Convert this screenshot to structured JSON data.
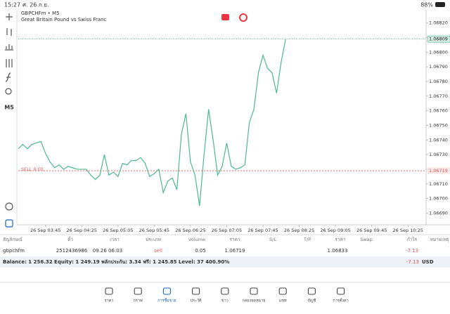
{
  "status_bar": {
    "time": "15:27",
    "date": "ศ. 26 ก.ย.",
    "battery": "88%"
  },
  "chart_data": {
    "type": "line",
    "title": "GBPCHFm • M5",
    "subtitle": "Great Britain Pound vs Swiss Franc",
    "color": "#4cb88d",
    "categories": [
      null,
      null,
      null,
      null,
      null,
      null,
      "26 Sep 03:45",
      null,
      null,
      null,
      null,
      null,
      null,
      null,
      "26 Sep 04:25",
      null,
      null,
      null,
      null,
      null,
      null,
      null,
      "26 Sep 05:05",
      null,
      null,
      null,
      null,
      null,
      null,
      null,
      "26 Sep 05:45",
      null,
      null,
      null,
      null,
      null,
      null,
      null,
      "26 Sep 06:25",
      null,
      null,
      null,
      null,
      null,
      null,
      null,
      "26 Sep 07:05",
      null,
      null,
      null,
      null,
      null,
      null,
      null,
      "26 Sep 07:45",
      null,
      null,
      null,
      null,
      null,
      null,
      null,
      "26 Sep 08:25",
      null,
      null,
      null,
      null,
      null,
      null,
      null,
      "26 Sep 09:05",
      null,
      null,
      null,
      null,
      null,
      null,
      null,
      "26 Sep 09:45",
      null,
      null,
      null,
      null,
      null,
      null,
      null,
      "26 Sep 10:25",
      null,
      null,
      null
    ],
    "values": [
      1.06734,
      1.06737,
      1.06734,
      1.06737,
      1.06738,
      1.06739,
      1.06731,
      1.06725,
      1.06721,
      1.06723,
      1.0672,
      1.06722,
      1.06721,
      1.0672,
      1.0672,
      1.0672,
      1.06716,
      1.06713,
      1.06716,
      1.0673,
      1.06716,
      1.06718,
      1.06715,
      1.06724,
      1.06723,
      1.06726,
      1.06726,
      1.06728,
      1.06724,
      1.06715,
      1.06717,
      1.0672,
      1.06704,
      1.06712,
      1.06714,
      1.06706,
      1.06744,
      1.06758,
      1.06725,
      1.06716,
      1.06695,
      1.0673,
      1.06761,
      1.0674,
      1.06716,
      1.06722,
      1.06738,
      1.06722,
      1.0672,
      1.06721,
      1.06723,
      1.06752,
      1.06761,
      1.06786,
      1.06798,
      1.06789,
      1.06786,
      1.06772,
      1.06793,
      1.06809,
      null,
      null,
      null,
      null,
      null,
      null,
      null,
      null,
      null,
      null,
      null,
      null,
      null,
      null,
      null,
      null,
      null,
      null,
      null,
      null,
      null,
      null,
      null,
      null,
      null,
      null,
      null,
      null,
      null,
      null
    ],
    "ylim": [
      1.06683,
      1.06829
    ],
    "yticks": [
      {
        "value": 1.0669,
        "label": "1.06690"
      },
      {
        "value": 1.067,
        "label": "1.06700"
      },
      {
        "value": 1.0671,
        "label": "1.06710"
      },
      {
        "value": 1.0672,
        "label": "1.06720"
      },
      {
        "value": 1.0673,
        "label": "1.06730"
      },
      {
        "value": 1.0674,
        "label": "1.06740"
      },
      {
        "value": 1.0675,
        "label": "1.06750"
      },
      {
        "value": 1.0676,
        "label": "1.06760"
      },
      {
        "value": 1.0677,
        "label": "1.06770"
      },
      {
        "value": 1.0678,
        "label": "1.06780"
      },
      {
        "value": 1.0679,
        "label": "1.06790"
      },
      {
        "value": 1.068,
        "label": "1.06800"
      },
      {
        "value": 1.0681,
        "label": "1.06810"
      },
      {
        "value": 1.0682,
        "label": "1.06820"
      }
    ],
    "bid": 1.06809,
    "bid_color": "#2e9b72",
    "order": {
      "label": "SELL 0.05",
      "price": 1.06719,
      "color": "#e05555"
    }
  },
  "toolbar": {
    "timeframe": "M5"
  },
  "positions_table": {
    "headers": [
      "สัญลักษณ์",
      "ตั๋ว",
      "เวลา",
      "ประเภท",
      "Volume",
      "ราคา",
      "S/L",
      "T/P",
      "ราคา",
      "Swap",
      "กำไร",
      "หมายเหตุ"
    ],
    "row": {
      "symbol": "gbpchfm",
      "ticket": "2512436986",
      "time": "09.26 06:03",
      "type": "sell",
      "volume": "0.05",
      "open_price": "1.06719",
      "current_price": "1.06833",
      "profit": "-7.13"
    }
  },
  "balance_bar": {
    "summary": "Balance: 1 256.32 Equity: 1 249.19 พลักประกัน: 3.34 ฟรี: 1 245.85 Level: 37 400.90%",
    "profit": "-7.13",
    "currency": "USD"
  },
  "nav": [
    "ราคา",
    "กราฟ",
    "การซื้อขาย",
    "ประวัติ",
    "ข่าว",
    "กล่องจดหมาย",
    "แชท",
    "บัญชี",
    "การตั้งค่า"
  ]
}
